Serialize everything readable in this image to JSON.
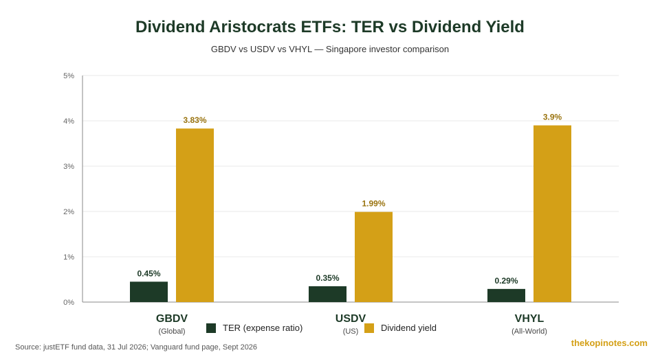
{
  "header": {
    "title": "Dividend Aristocrats ETFs: TER vs Dividend Yield",
    "subtitle": "GBDV vs USDV vs VHYL — Singapore investor comparison"
  },
  "footer": {
    "source": "Source: justETF fund data, 31 Jul 2026; Vanguard fund page, Sept 2026",
    "brand": "thekopinotes.com"
  },
  "colors": {
    "ter": "#1d3a27",
    "yield": "#d4a017",
    "grid": "#e8e8e8",
    "axis": "#888888"
  },
  "chart_data": {
    "type": "bar",
    "title": "Dividend Aristocrats ETFs: TER vs Dividend Yield",
    "subtitle": "GBDV vs USDV vs VHYL — Singapore investor comparison",
    "categories": [
      "GBDV",
      "USDV",
      "VHYL"
    ],
    "category_sublabels": [
      "(Global)",
      "(US)",
      "(All-World)"
    ],
    "series": [
      {
        "name": "TER (expense ratio)",
        "values": [
          0.45,
          0.35,
          0.29
        ],
        "labels": [
          "0.45%",
          "0.35%",
          "0.29%"
        ]
      },
      {
        "name": "Dividend yield",
        "values": [
          3.83,
          1.99,
          3.9
        ],
        "labels": [
          "3.83%",
          "1.99%",
          "3.9%"
        ]
      }
    ],
    "y_ticks": [
      "0%",
      "1%",
      "2%",
      "3%",
      "4%",
      "5%"
    ],
    "ylim": [
      0,
      5
    ],
    "grid": true,
    "legend": "bottom-center"
  }
}
